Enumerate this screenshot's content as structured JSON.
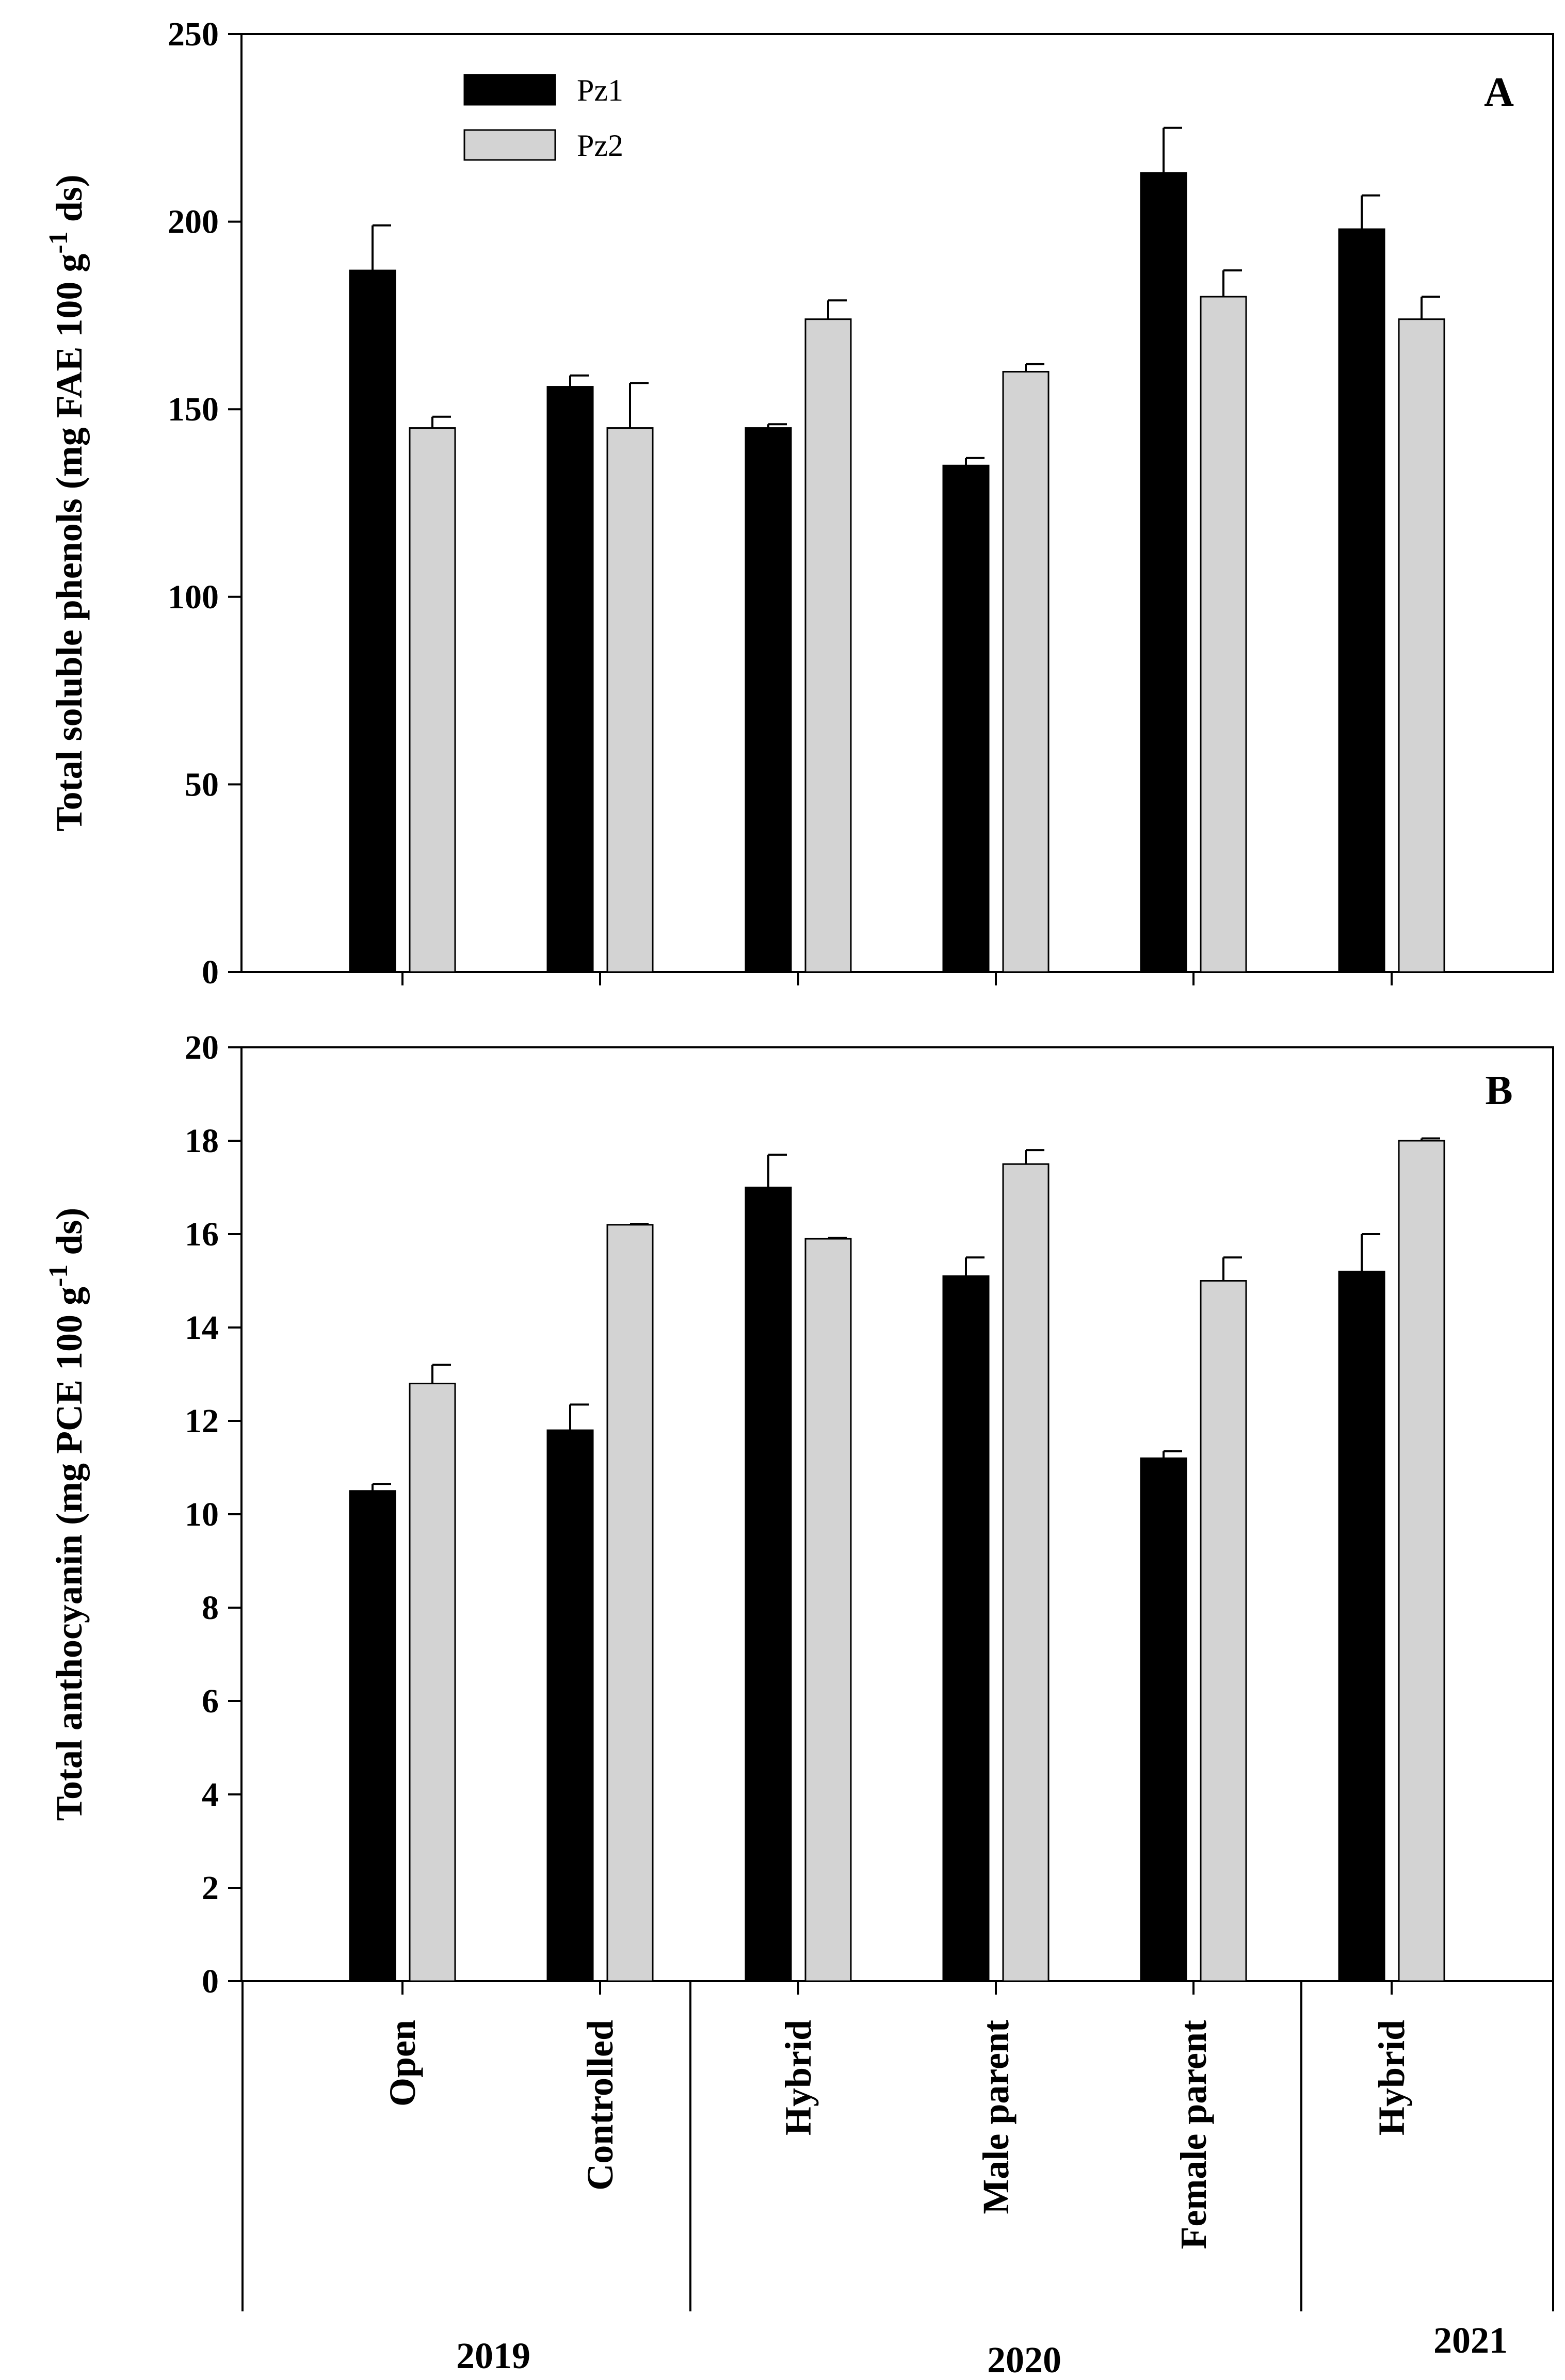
{
  "colors": {
    "pz1": "#000000",
    "pz2": "#d3d3d3",
    "axis": "#000000",
    "background": "#ffffff"
  },
  "legend": [
    {
      "key": "pz1",
      "label": "Pz1"
    },
    {
      "key": "pz2",
      "label": "Pz2"
    }
  ],
  "categories": [
    "Open",
    "Controlled",
    "Hybrid",
    "Male parent",
    "Female parent",
    "Hybrid"
  ],
  "year_groups": [
    {
      "label": "2019",
      "start": 0,
      "end": 1
    },
    {
      "label": "2020",
      "start": 2,
      "end": 4
    },
    {
      "label": "2021",
      "start": 5,
      "end": 5
    }
  ],
  "chart_data": [
    {
      "type": "bar",
      "panel": "A",
      "ylabel": "Total soluble phenols (mg FAE 100 g⁻¹ ds)",
      "ylabel_parts": [
        "Total soluble phenols (mg FAE 100 g",
        "-1",
        " ds)"
      ],
      "ylim": [
        0,
        250
      ],
      "yticks": [
        0,
        50,
        100,
        150,
        200,
        250
      ],
      "series": [
        {
          "name": "Pz1",
          "values": [
            187,
            156,
            145,
            135,
            213,
            198
          ],
          "errors": [
            12,
            3,
            1,
            2,
            12,
            9
          ]
        },
        {
          "name": "Pz2",
          "values": [
            145,
            145,
            174,
            160,
            180,
            174
          ],
          "errors": [
            3,
            12,
            5,
            2,
            7,
            6
          ]
        }
      ]
    },
    {
      "type": "bar",
      "panel": "B",
      "ylabel": "Total anthocyanin (mg PCE 100 g⁻¹ ds)",
      "ylabel_parts": [
        "Total anthocyanin (mg PCE 100 g",
        "-1",
        " ds)"
      ],
      "ylim": [
        0,
        20
      ],
      "yticks": [
        0,
        2,
        4,
        6,
        8,
        10,
        12,
        14,
        16,
        18,
        20
      ],
      "series": [
        {
          "name": "Pz1",
          "values": [
            10.5,
            11.8,
            17.0,
            15.1,
            11.2,
            15.2
          ],
          "errors": [
            0.15,
            0.55,
            0.7,
            0.4,
            0.15,
            0.8
          ]
        },
        {
          "name": "Pz2",
          "values": [
            12.8,
            16.2,
            15.9,
            17.5,
            15.0,
            18.0
          ],
          "errors": [
            0.4,
            0.02,
            0.02,
            0.3,
            0.5,
            0.05
          ]
        }
      ]
    }
  ]
}
